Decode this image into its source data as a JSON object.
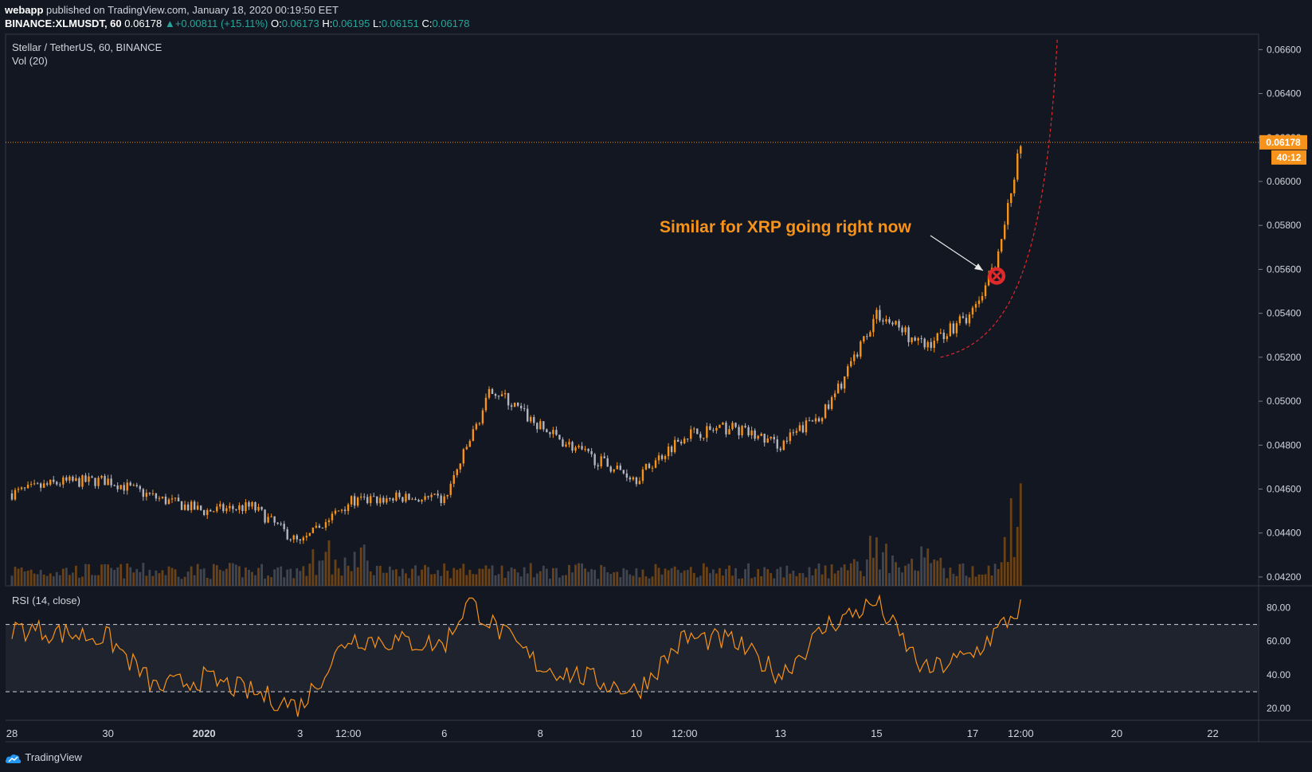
{
  "header": {
    "publisher": "webapp",
    "published_text": "published on TradingView.com, January 18, 2020 00:19:50 EET",
    "symbol": "BINANCE:XLMUSDT, 60",
    "last": "0.06178",
    "change_arrow": "▲",
    "change": "+0.00811 (+15.11%)",
    "o_label": "O:",
    "o": "0.06173",
    "h_label": "H:",
    "h": "0.06195",
    "l_label": "L:",
    "l": "0.06151",
    "c_label": "C:",
    "c": "0.06178"
  },
  "pane": {
    "title": "Stellar / TetherUS, 60, BINANCE",
    "volume_label": "Vol (20)",
    "rsi_label": "RSI (14, close)"
  },
  "price_tag": "0.06178",
  "countdown_tag": "40:12",
  "annotation": "Similar for XRP going right now",
  "footer": {
    "logo_text": "TradingView",
    "logo_icon": "tradingview-cloud-icon"
  },
  "colors": {
    "background": "#131722",
    "up_candle": "#f7931a",
    "down_candle": "#b2b5be",
    "rsi_line": "#f7931a",
    "price_line": "#f7931a",
    "annotation": "#f7931a",
    "projection": "#e0292b"
  },
  "chart_data": [
    {
      "type": "candlestick",
      "x": [
        "2019-12-28",
        "2019-12-30",
        "2020-01-01",
        "2020-01-03",
        "2020-01-04",
        "2020-01-06",
        "2020-01-07",
        "2020-01-08",
        "2020-01-09",
        "2020-01-10",
        "2020-01-11",
        "2020-01-12",
        "2020-01-13",
        "2020-01-14",
        "2020-01-15",
        "2020-01-16",
        "2020-01-17",
        "2020-01-17 12:00",
        "2020-01-18"
      ],
      "x_tick_labels": [
        "28",
        "30",
        "2020",
        "3",
        "12:00",
        "6",
        "8",
        "10",
        "12:00",
        "13",
        "15",
        "17",
        "12:00",
        "20",
        "22"
      ],
      "price_path": [
        {
          "x": "2019-12-28",
          "y": 0.0458
        },
        {
          "x": "2019-12-29",
          "y": 0.0463
        },
        {
          "x": "2019-12-30",
          "y": 0.0464
        },
        {
          "x": "2019-12-31",
          "y": 0.0456
        },
        {
          "x": "2020-01-01",
          "y": 0.045
        },
        {
          "x": "2020-01-02",
          "y": 0.0452
        },
        {
          "x": "2020-01-03",
          "y": 0.0435
        },
        {
          "x": "2020-01-04",
          "y": 0.0454
        },
        {
          "x": "2020-01-05",
          "y": 0.0456
        },
        {
          "x": "2020-01-06",
          "y": 0.0455
        },
        {
          "x": "2020-01-07",
          "y": 0.0506
        },
        {
          "x": "2020-01-08",
          "y": 0.0488
        },
        {
          "x": "2020-01-09",
          "y": 0.0475
        },
        {
          "x": "2020-01-10",
          "y": 0.0465
        },
        {
          "x": "2020-01-11",
          "y": 0.0485
        },
        {
          "x": "2020-01-12",
          "y": 0.0488
        },
        {
          "x": "2020-01-13",
          "y": 0.048
        },
        {
          "x": "2020-01-14",
          "y": 0.0497
        },
        {
          "x": "2020-01-15",
          "y": 0.054
        },
        {
          "x": "2020-01-16",
          "y": 0.0525
        },
        {
          "x": "2020-01-17",
          "y": 0.054
        },
        {
          "x": "2020-01-17 12:00",
          "y": 0.0562
        },
        {
          "x": "2020-01-18",
          "y": 0.0618
        }
      ],
      "y_axis": {
        "tick_labels": [
          "0.06600",
          "0.06400",
          "0.06200",
          "0.06000",
          "0.05800",
          "0.05600",
          "0.05400",
          "0.05200",
          "0.05000",
          "0.04800",
          "0.04600",
          "0.04400",
          "0.04200"
        ],
        "ylim": [
          0.0416,
          0.0667
        ]
      },
      "last_price": 0.06178,
      "volume": {
        "label": "Vol (20)",
        "spikes": [
          {
            "x": "2020-01-15",
            "relative": 0.45
          },
          {
            "x": "2020-01-16",
            "relative": 0.25
          },
          {
            "x": "2020-01-18",
            "relative": 1.0
          }
        ]
      },
      "annotation": {
        "text": "Similar for XRP going right now",
        "marker_at": {
          "x": "2020-01-17 12:00",
          "y": 0.0557
        }
      }
    },
    {
      "type": "line",
      "name": "RSI (14, close)",
      "y_axis": {
        "tick_labels": [
          "80.00",
          "60.00",
          "40.00",
          "20.00"
        ],
        "ylim": [
          13,
          93
        ]
      },
      "band": [
        30,
        70
      ],
      "path": [
        {
          "x": "2019-12-28",
          "y": 68
        },
        {
          "x": "2019-12-30",
          "y": 62
        },
        {
          "x": "2019-12-31",
          "y": 32
        },
        {
          "x": "2020-01-01",
          "y": 38
        },
        {
          "x": "2020-01-03",
          "y": 21
        },
        {
          "x": "2020-01-04",
          "y": 62
        },
        {
          "x": "2020-01-06",
          "y": 58
        },
        {
          "x": "2020-01-06 12:00",
          "y": 84
        },
        {
          "x": "2020-01-07",
          "y": 70
        },
        {
          "x": "2020-01-08",
          "y": 45
        },
        {
          "x": "2020-01-09",
          "y": 38
        },
        {
          "x": "2020-01-10",
          "y": 30
        },
        {
          "x": "2020-01-11",
          "y": 62
        },
        {
          "x": "2020-01-12",
          "y": 60
        },
        {
          "x": "2020-01-13",
          "y": 40
        },
        {
          "x": "2020-01-14",
          "y": 70
        },
        {
          "x": "2020-01-15",
          "y": 83
        },
        {
          "x": "2020-01-16",
          "y": 42
        },
        {
          "x": "2020-01-17",
          "y": 52
        },
        {
          "x": "2020-01-18",
          "y": 80
        }
      ]
    }
  ]
}
